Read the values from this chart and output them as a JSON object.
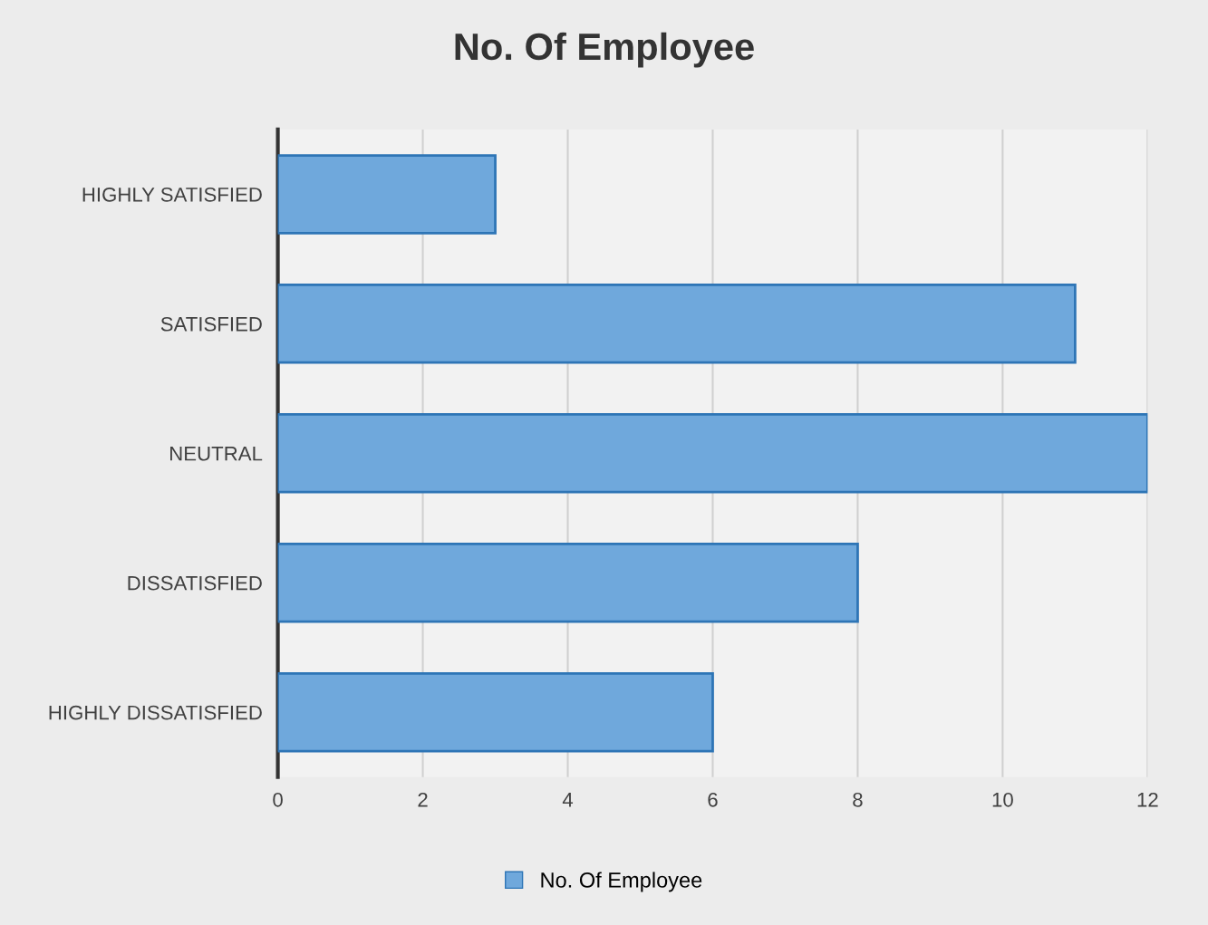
{
  "chart_data": {
    "type": "bar",
    "orientation": "horizontal",
    "title": "No. Of Employee",
    "categories": [
      "HIGHLY SATISFIED",
      "SATISFIED",
      "NEUTRAL",
      "DISSATISFIED",
      "HIGHLY DISSATISFIED"
    ],
    "series": [
      {
        "name": "No. Of Employee",
        "color": "#6fa8dc",
        "values": [
          3,
          11,
          12,
          8,
          6
        ]
      }
    ],
    "xlim": [
      0,
      12
    ],
    "xticks": [
      0,
      2,
      4,
      6,
      8,
      10,
      12
    ],
    "grid": "x",
    "legend": "bottom"
  }
}
